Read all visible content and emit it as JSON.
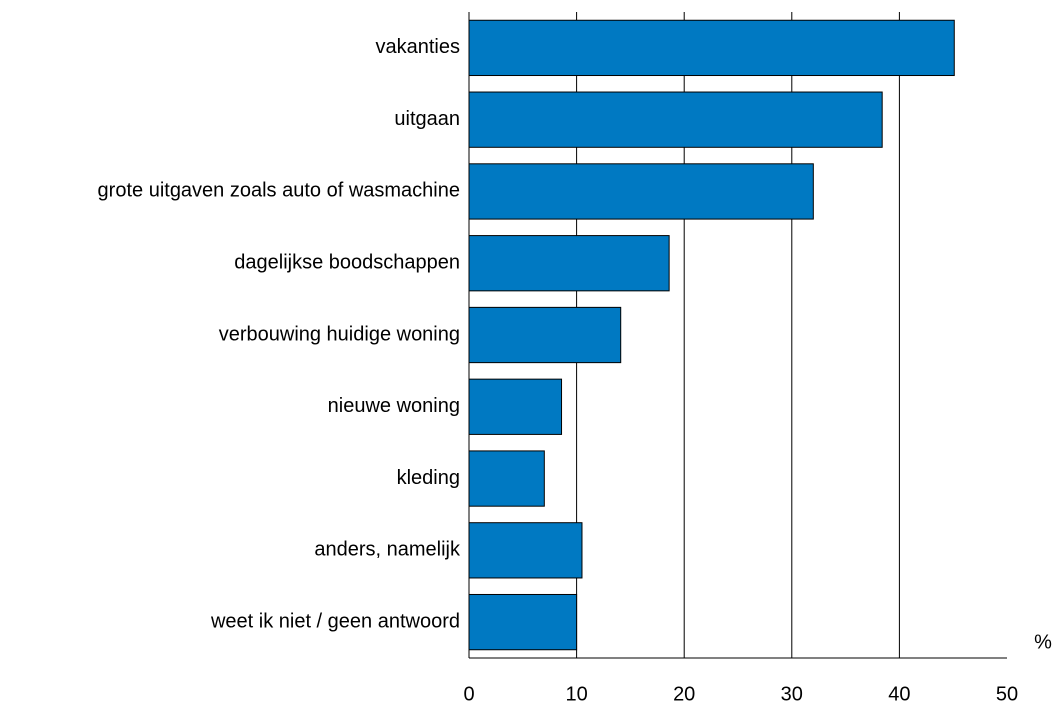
{
  "chart_data": {
    "type": "bar",
    "orientation": "horizontal",
    "categories": [
      "vakanties",
      "uitgaan",
      "grote uitgaven zoals auto of wasmachine",
      "dagelijkse boodschappen",
      "verbouwing huidige woning",
      "nieuwe woning",
      "kleding",
      "anders, namelijk",
      "weet ik niet / geen antwoord"
    ],
    "values": [
      45.1,
      38.4,
      32.0,
      18.6,
      14.1,
      8.6,
      7.0,
      10.5,
      10.0
    ],
    "color": "#0079c2",
    "x_label": "%",
    "xlim": [
      0,
      50
    ],
    "xticks": [
      0,
      10,
      20,
      30,
      40,
      50
    ],
    "grid": true
  }
}
